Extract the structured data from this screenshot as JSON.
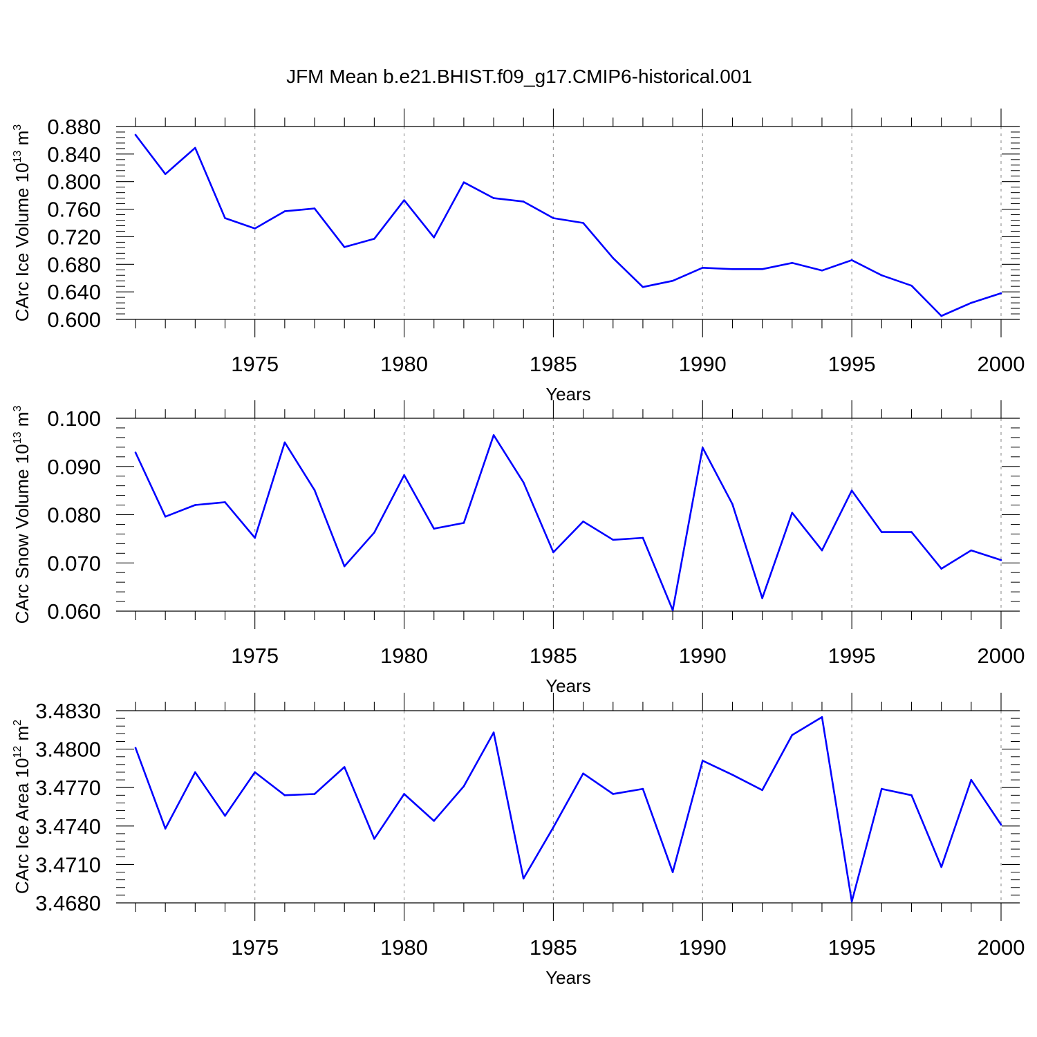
{
  "chart_data": {
    "title": "JFM Mean b.e21.BHIST.f09_g17.CMIP6-historical.001",
    "colors": {
      "line": "#0000ff",
      "axis": "#000000",
      "grid": "#9a9a9a"
    },
    "panels": [
      {
        "type": "line",
        "ylabel_text": "CArc Ice Volume 10",
        "ylabel_exp": "13",
        "ylabel_unit": " m",
        "ylabel_unit_exp": "3",
        "xlabel": "Years",
        "xlim": [
          1971,
          2000
        ],
        "ylim": [
          0.6,
          0.88
        ],
        "yticks": [
          0.6,
          0.64,
          0.68,
          0.72,
          0.76,
          0.8,
          0.84,
          0.88
        ],
        "ytick_labels": [
          "0.600",
          "0.640",
          "0.680",
          "0.720",
          "0.760",
          "0.800",
          "0.840",
          "0.880"
        ],
        "xticks": [
          1975,
          1980,
          1985,
          1990,
          1995,
          2000
        ],
        "xtick_labels": [
          "1975",
          "1980",
          "1985",
          "1990",
          "1995",
          "2000"
        ],
        "x": [
          1971,
          1972,
          1973,
          1974,
          1975,
          1976,
          1977,
          1978,
          1979,
          1980,
          1981,
          1982,
          1983,
          1984,
          1985,
          1986,
          1987,
          1988,
          1989,
          1990,
          1991,
          1992,
          1993,
          1994,
          1995,
          1996,
          1997,
          1998,
          1999,
          2000
        ],
        "values": [
          0.868,
          0.811,
          0.849,
          0.747,
          0.732,
          0.757,
          0.761,
          0.705,
          0.717,
          0.773,
          0.719,
          0.799,
          0.776,
          0.771,
          0.747,
          0.74,
          0.689,
          0.647,
          0.656,
          0.675,
          0.673,
          0.673,
          0.682,
          0.671,
          0.686,
          0.664,
          0.649,
          0.605,
          0.624,
          0.638
        ]
      },
      {
        "type": "line",
        "ylabel_text": "CArc Snow Volume 10",
        "ylabel_exp": "13",
        "ylabel_unit": " m",
        "ylabel_unit_exp": "3",
        "xlabel": "Years",
        "xlim": [
          1971,
          2000
        ],
        "ylim": [
          0.06,
          0.1
        ],
        "yticks": [
          0.06,
          0.07,
          0.08,
          0.09,
          0.1
        ],
        "ytick_labels": [
          "0.060",
          "0.070",
          "0.080",
          "0.090",
          "0.100"
        ],
        "xticks": [
          1975,
          1980,
          1985,
          1990,
          1995,
          2000
        ],
        "xtick_labels": [
          "1975",
          "1980",
          "1985",
          "1990",
          "1995",
          "2000"
        ],
        "x": [
          1971,
          1972,
          1973,
          1974,
          1975,
          1976,
          1977,
          1978,
          1979,
          1980,
          1981,
          1982,
          1983,
          1984,
          1985,
          1986,
          1987,
          1988,
          1989,
          1990,
          1991,
          1992,
          1993,
          1994,
          1995,
          1996,
          1997,
          1998,
          1999,
          2000
        ],
        "values": [
          0.0929,
          0.0796,
          0.082,
          0.0826,
          0.0752,
          0.095,
          0.0851,
          0.0693,
          0.0763,
          0.0882,
          0.0771,
          0.0783,
          0.0965,
          0.0867,
          0.0722,
          0.0786,
          0.0748,
          0.0752,
          0.0602,
          0.0939,
          0.0822,
          0.0627,
          0.0804,
          0.0726,
          0.085,
          0.0764,
          0.0764,
          0.0688,
          0.0726,
          0.0706
        ]
      },
      {
        "type": "line",
        "ylabel_text": "CArc Ice Area 10",
        "ylabel_exp": "12",
        "ylabel_unit": " m",
        "ylabel_unit_exp": "2",
        "xlabel": "Years",
        "xlim": [
          1971,
          2000
        ],
        "ylim": [
          3.468,
          3.483
        ],
        "yticks": [
          3.468,
          3.471,
          3.474,
          3.477,
          3.48,
          3.483
        ],
        "ytick_labels": [
          "3.4680",
          "3.4710",
          "3.4740",
          "3.4770",
          "3.4800",
          "3.4830"
        ],
        "xticks": [
          1975,
          1980,
          1985,
          1990,
          1995,
          2000
        ],
        "xtick_labels": [
          "1975",
          "1980",
          "1985",
          "1990",
          "1995",
          "2000"
        ],
        "x": [
          1971,
          1972,
          1973,
          1974,
          1975,
          1976,
          1977,
          1978,
          1979,
          1980,
          1981,
          1982,
          1983,
          1984,
          1985,
          1986,
          1987,
          1988,
          1989,
          1990,
          1991,
          1992,
          1993,
          1994,
          1995,
          1996,
          1997,
          1998,
          1999,
          2000
        ],
        "values": [
          3.4801,
          3.4738,
          3.4782,
          3.4748,
          3.4782,
          3.4764,
          3.4765,
          3.4786,
          3.473,
          3.4765,
          3.4744,
          3.4771,
          3.4813,
          3.4699,
          3.4739,
          3.4781,
          3.4765,
          3.4769,
          3.4704,
          3.4791,
          3.478,
          3.4768,
          3.4811,
          3.4825,
          3.4681,
          3.4769,
          3.4764,
          3.4708,
          3.4776,
          3.4741
        ]
      }
    ]
  }
}
